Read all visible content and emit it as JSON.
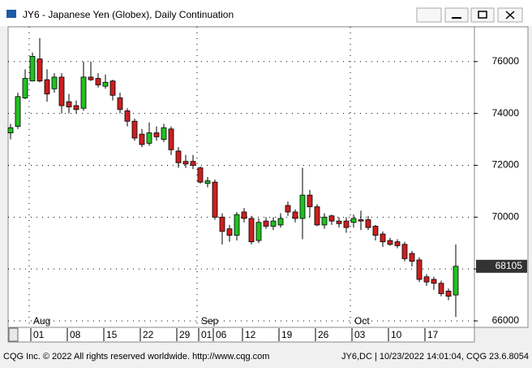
{
  "window_title": "JY6 - Japanese Yen (Globex), Daily Continuation",
  "chart_data": {
    "type": "candlestick",
    "categories": [
      null,
      null,
      null,
      "01",
      null,
      null,
      null,
      null,
      "08",
      null,
      null,
      null,
      null,
      "15",
      null,
      null,
      null,
      null,
      "22",
      null,
      null,
      null,
      null,
      "29",
      null,
      null,
      "01",
      null,
      "06",
      null,
      null,
      null,
      "12",
      null,
      null,
      null,
      null,
      "19",
      null,
      null,
      null,
      null,
      "26",
      null,
      null,
      null,
      null,
      "03",
      null,
      null,
      null,
      null,
      "10",
      null,
      null,
      null,
      null,
      "17",
      null,
      null,
      null,
      null
    ],
    "months": [
      null,
      null,
      null,
      "Aug",
      null,
      null,
      null,
      null,
      null,
      null,
      null,
      null,
      null,
      null,
      null,
      null,
      null,
      null,
      null,
      null,
      null,
      null,
      null,
      null,
      null,
      null,
      "Sep",
      null,
      null,
      null,
      null,
      null,
      null,
      null,
      null,
      null,
      null,
      null,
      null,
      null,
      null,
      null,
      null,
      null,
      null,
      null,
      null,
      "Oct",
      null,
      null,
      null,
      null,
      null,
      null,
      null,
      null,
      null,
      null,
      null,
      null,
      null,
      null
    ],
    "open": [
      73250,
      73500,
      74600,
      75250,
      76100,
      75300,
      74950,
      75400,
      74450,
      74300,
      74200,
      75400,
      75350,
      75050,
      75250,
      74600,
      74100,
      73700,
      73200,
      72850,
      73250,
      73000,
      73400,
      72550,
      72150,
      72150,
      71900,
      71300,
      71350,
      70000,
      69550,
      69300,
      70200,
      69950,
      69100,
      69850,
      69650,
      69700,
      70450,
      70200,
      69950,
      70850,
      70400,
      69700,
      70050,
      69850,
      69850,
      69800,
      69900,
      69900,
      69650,
      69350,
      69100,
      69050,
      68950,
      68600,
      68350,
      67700,
      67600,
      67450,
      67150,
      67000
    ],
    "high": [
      73600,
      74800,
      75700,
      76350,
      76900,
      75700,
      75550,
      75550,
      74750,
      74500,
      76000,
      76000,
      75550,
      75500,
      75300,
      74800,
      74200,
      73800,
      73400,
      73650,
      73500,
      73600,
      73500,
      72700,
      72400,
      72400,
      71950,
      71550,
      71450,
      70150,
      69700,
      70200,
      70350,
      70050,
      69950,
      70000,
      70000,
      70150,
      70600,
      70300,
      71900,
      71050,
      70500,
      70150,
      70100,
      70000,
      70000,
      70100,
      70250,
      70050,
      69700,
      69450,
      69200,
      69150,
      69050,
      68700,
      68450,
      67800,
      67700,
      67550,
      67250,
      68950
    ],
    "low": [
      73000,
      73400,
      74550,
      75250,
      75200,
      74450,
      74800,
      74000,
      74000,
      74000,
      74100,
      75250,
      75000,
      74950,
      74500,
      74000,
      73500,
      72950,
      72700,
      72750,
      72950,
      72900,
      72400,
      71900,
      71900,
      71850,
      71300,
      71150,
      69900,
      68950,
      69050,
      69100,
      69800,
      68950,
      69000,
      69550,
      69500,
      69600,
      70050,
      69800,
      69150,
      70000,
      69650,
      69550,
      69700,
      69600,
      69400,
      69600,
      69500,
      69500,
      69100,
      68850,
      68900,
      68800,
      68300,
      68100,
      67500,
      67350,
      67200,
      66950,
      66800,
      66150
    ],
    "close": [
      73450,
      74650,
      75350,
      76200,
      75250,
      74750,
      75400,
      74300,
      74250,
      74150,
      75400,
      75300,
      75100,
      75200,
      74700,
      74150,
      73700,
      73050,
      72800,
      73250,
      73100,
      73450,
      72600,
      72100,
      72050,
      72000,
      71350,
      71400,
      70000,
      69450,
      69300,
      70100,
      69950,
      69050,
      69800,
      69650,
      69850,
      69950,
      70200,
      69950,
      70850,
      70400,
      69700,
      70000,
      69850,
      69750,
      69600,
      69950,
      69850,
      69600,
      69300,
      69050,
      68950,
      68900,
      68400,
      68300,
      67600,
      67500,
      67450,
      67050,
      66950,
      68105
    ],
    "up_color": "#22c022",
    "down_color": "#cc1f1f",
    "ylim": [
      65750,
      77340
    ],
    "yticks": [
      66000,
      68000,
      70000,
      72000,
      74000,
      76000
    ],
    "grid": true,
    "last_price": 68105
  },
  "footer": {
    "left": "CQG Inc. © 2022 All rights reserved worldwide. http://www.cqg.com",
    "right": "JY6,DC | 10/23/2022 14:01:04, CQG 23.6.8054"
  }
}
